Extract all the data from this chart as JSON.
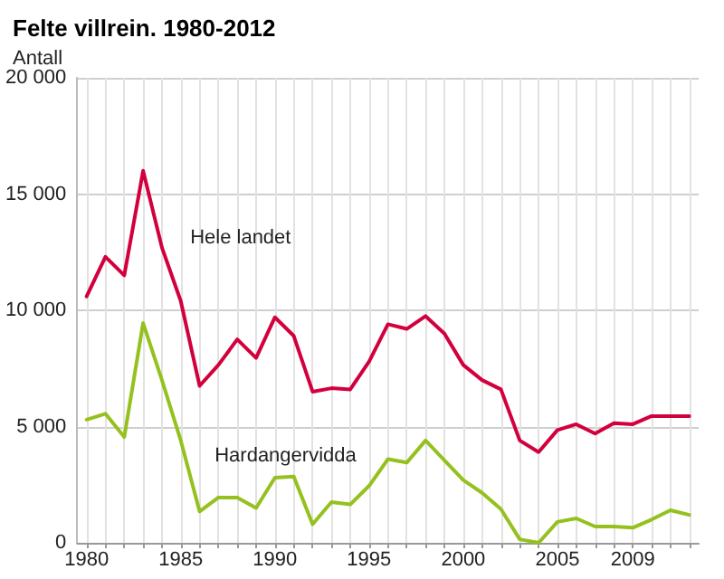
{
  "chart_data": {
    "type": "line",
    "title": "Felte villrein. 1980-2012",
    "ylabel": "Antall",
    "x": [
      1980,
      1981,
      1982,
      1983,
      1984,
      1985,
      1986,
      1987,
      1988,
      1989,
      1990,
      1991,
      1992,
      1993,
      1994,
      1995,
      1996,
      1997,
      1998,
      1999,
      2000,
      2001,
      2002,
      2003,
      2004,
      2005,
      2006,
      2007,
      2008,
      2009,
      2010,
      2011,
      2012
    ],
    "series": [
      {
        "name": "Hele landet",
        "color": "#d2003c",
        "values": [
          10600,
          12300,
          11500,
          16000,
          12700,
          10400,
          6750,
          7650,
          8750,
          7950,
          9700,
          8900,
          6500,
          6650,
          6600,
          7800,
          9400,
          9200,
          9750,
          9000,
          7650,
          7000,
          6600,
          4400,
          3900,
          4850,
          5100,
          4700,
          5150,
          5100,
          5450,
          5450,
          5450
        ]
      },
      {
        "name": "Hardangervidda",
        "color": "#95c11f",
        "values": [
          5300,
          5550,
          4550,
          9450,
          7000,
          4400,
          1350,
          1950,
          1950,
          1500,
          2800,
          2850,
          800,
          1750,
          1650,
          2450,
          3600,
          3450,
          4400,
          3550,
          2700,
          2150,
          1450,
          150,
          0,
          900,
          1050,
          700,
          700,
          650,
          1000,
          1400,
          1200
        ]
      }
    ],
    "xlim": [
      1979.5,
      2012.5
    ],
    "xticks": [
      1980,
      {
        "value": 1981,
        "label": null
      },
      {
        "value": 1982,
        "label": null
      },
      {
        "value": 1983,
        "label": null
      },
      {
        "value": 1984,
        "label": null
      },
      1985,
      {
        "value": 1986,
        "label": null
      },
      {
        "value": 1987,
        "label": null
      },
      {
        "value": 1988,
        "label": null
      },
      {
        "value": 1989,
        "label": null
      },
      1990,
      {
        "value": 1991,
        "label": null
      },
      {
        "value": 1992,
        "label": null
      },
      {
        "value": 1993,
        "label": null
      },
      {
        "value": 1994,
        "label": null
      },
      1995,
      {
        "value": 1996,
        "label": null
      },
      {
        "value": 1997,
        "label": null
      },
      {
        "value": 1998,
        "label": null
      },
      {
        "value": 1999,
        "label": null
      },
      2000,
      {
        "value": 2001,
        "label": null
      },
      {
        "value": 2002,
        "label": null
      },
      {
        "value": 2003,
        "label": null
      },
      {
        "value": 2004,
        "label": null
      },
      2005,
      {
        "value": 2006,
        "label": null
      },
      {
        "value": 2007,
        "label": null
      },
      {
        "value": 2008,
        "label": null
      },
      2009,
      {
        "value": 2010,
        "label": null
      },
      {
        "value": 2011,
        "label": null
      },
      {
        "value": 2012,
        "label": null
      }
    ],
    "ylim": [
      0,
      20000
    ],
    "yticks": [
      0,
      {
        "value": 5000,
        "label": "5 000"
      },
      {
        "value": 10000,
        "label": "10 000"
      },
      {
        "value": 15000,
        "label": "15 000"
      },
      {
        "value": 20000,
        "label": "20 000"
      }
    ],
    "grid": true,
    "legend": false,
    "marker": "none",
    "line_style": "solid"
  }
}
